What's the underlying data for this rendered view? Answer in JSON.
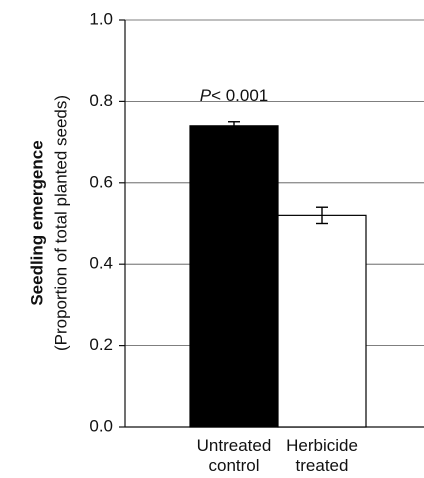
{
  "chart_data": {
    "type": "bar",
    "y_label": [
      "Seedling emergence",
      "(Proportion of total planted seeds)"
    ],
    "categories": [
      "Untreated control",
      "Herbicide treated"
    ],
    "series": [
      {
        "values": [
          0.74,
          0.52
        ],
        "errors": [
          0.01,
          0.02
        ],
        "colors": [
          "#000000",
          "#ffffff"
        ],
        "edge": "#000000"
      }
    ],
    "annotation": [
      "P",
      "< 0.001"
    ],
    "ylim": [
      0,
      1
    ],
    "yticks": [
      {
        "value": 0,
        "label": "0.0"
      },
      {
        "value": 0.2,
        "label": "0.2"
      },
      {
        "value": 0.4,
        "label": "0.4"
      },
      {
        "value": 0.6,
        "label": "0.6"
      },
      {
        "value": 0.8,
        "label": "0.8"
      },
      {
        "value": 1,
        "label": "1.0"
      }
    ],
    "grid": true
  }
}
